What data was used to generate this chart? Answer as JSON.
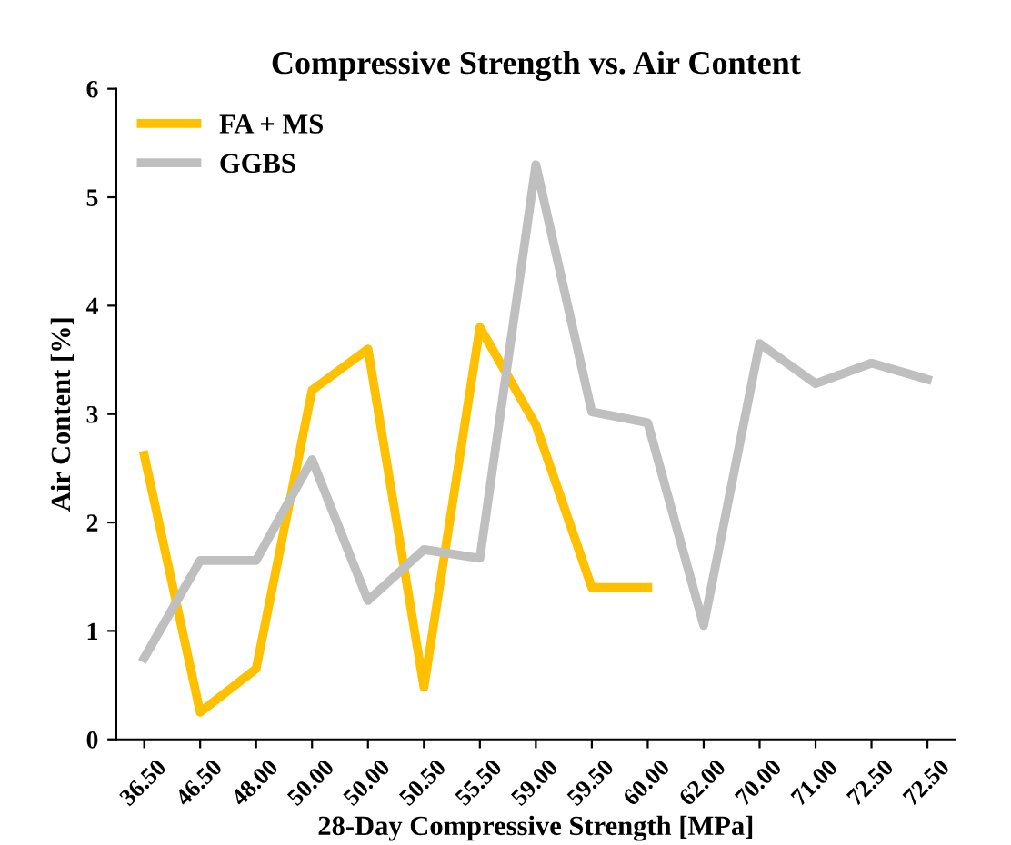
{
  "chart_data": {
    "type": "line",
    "title": "Compressive Strength vs. Air Content",
    "xlabel": "28-Day Compressive Strength [MPa]",
    "ylabel": "Air Content [%]",
    "categories": [
      "36.50",
      "46.50",
      "48.00",
      "50.00",
      "50.00",
      "50.50",
      "55.50",
      "59.00",
      "59.50",
      "60.00",
      "62.00",
      "70.00",
      "71.00",
      "72.50",
      "72.50"
    ],
    "series": [
      {
        "name": "FA + MS",
        "color": "#ffc000",
        "values": [
          2.62,
          0.25,
          0.65,
          3.22,
          3.6,
          0.48,
          3.8,
          2.9,
          1.4,
          1.4,
          null,
          null,
          null,
          null,
          null
        ]
      },
      {
        "name": "GGBS",
        "color": "#bfbfbf",
        "values": [
          0.75,
          1.65,
          1.65,
          2.58,
          1.28,
          1.75,
          1.67,
          5.3,
          3.02,
          2.92,
          1.05,
          3.65,
          3.28,
          3.47,
          3.32
        ]
      }
    ],
    "ylim": [
      0,
      6
    ],
    "yticks": [
      0,
      1,
      2,
      3,
      4,
      5,
      6
    ],
    "grid": false,
    "legend": "top left",
    "marker": "none",
    "line_style": "solid"
  }
}
